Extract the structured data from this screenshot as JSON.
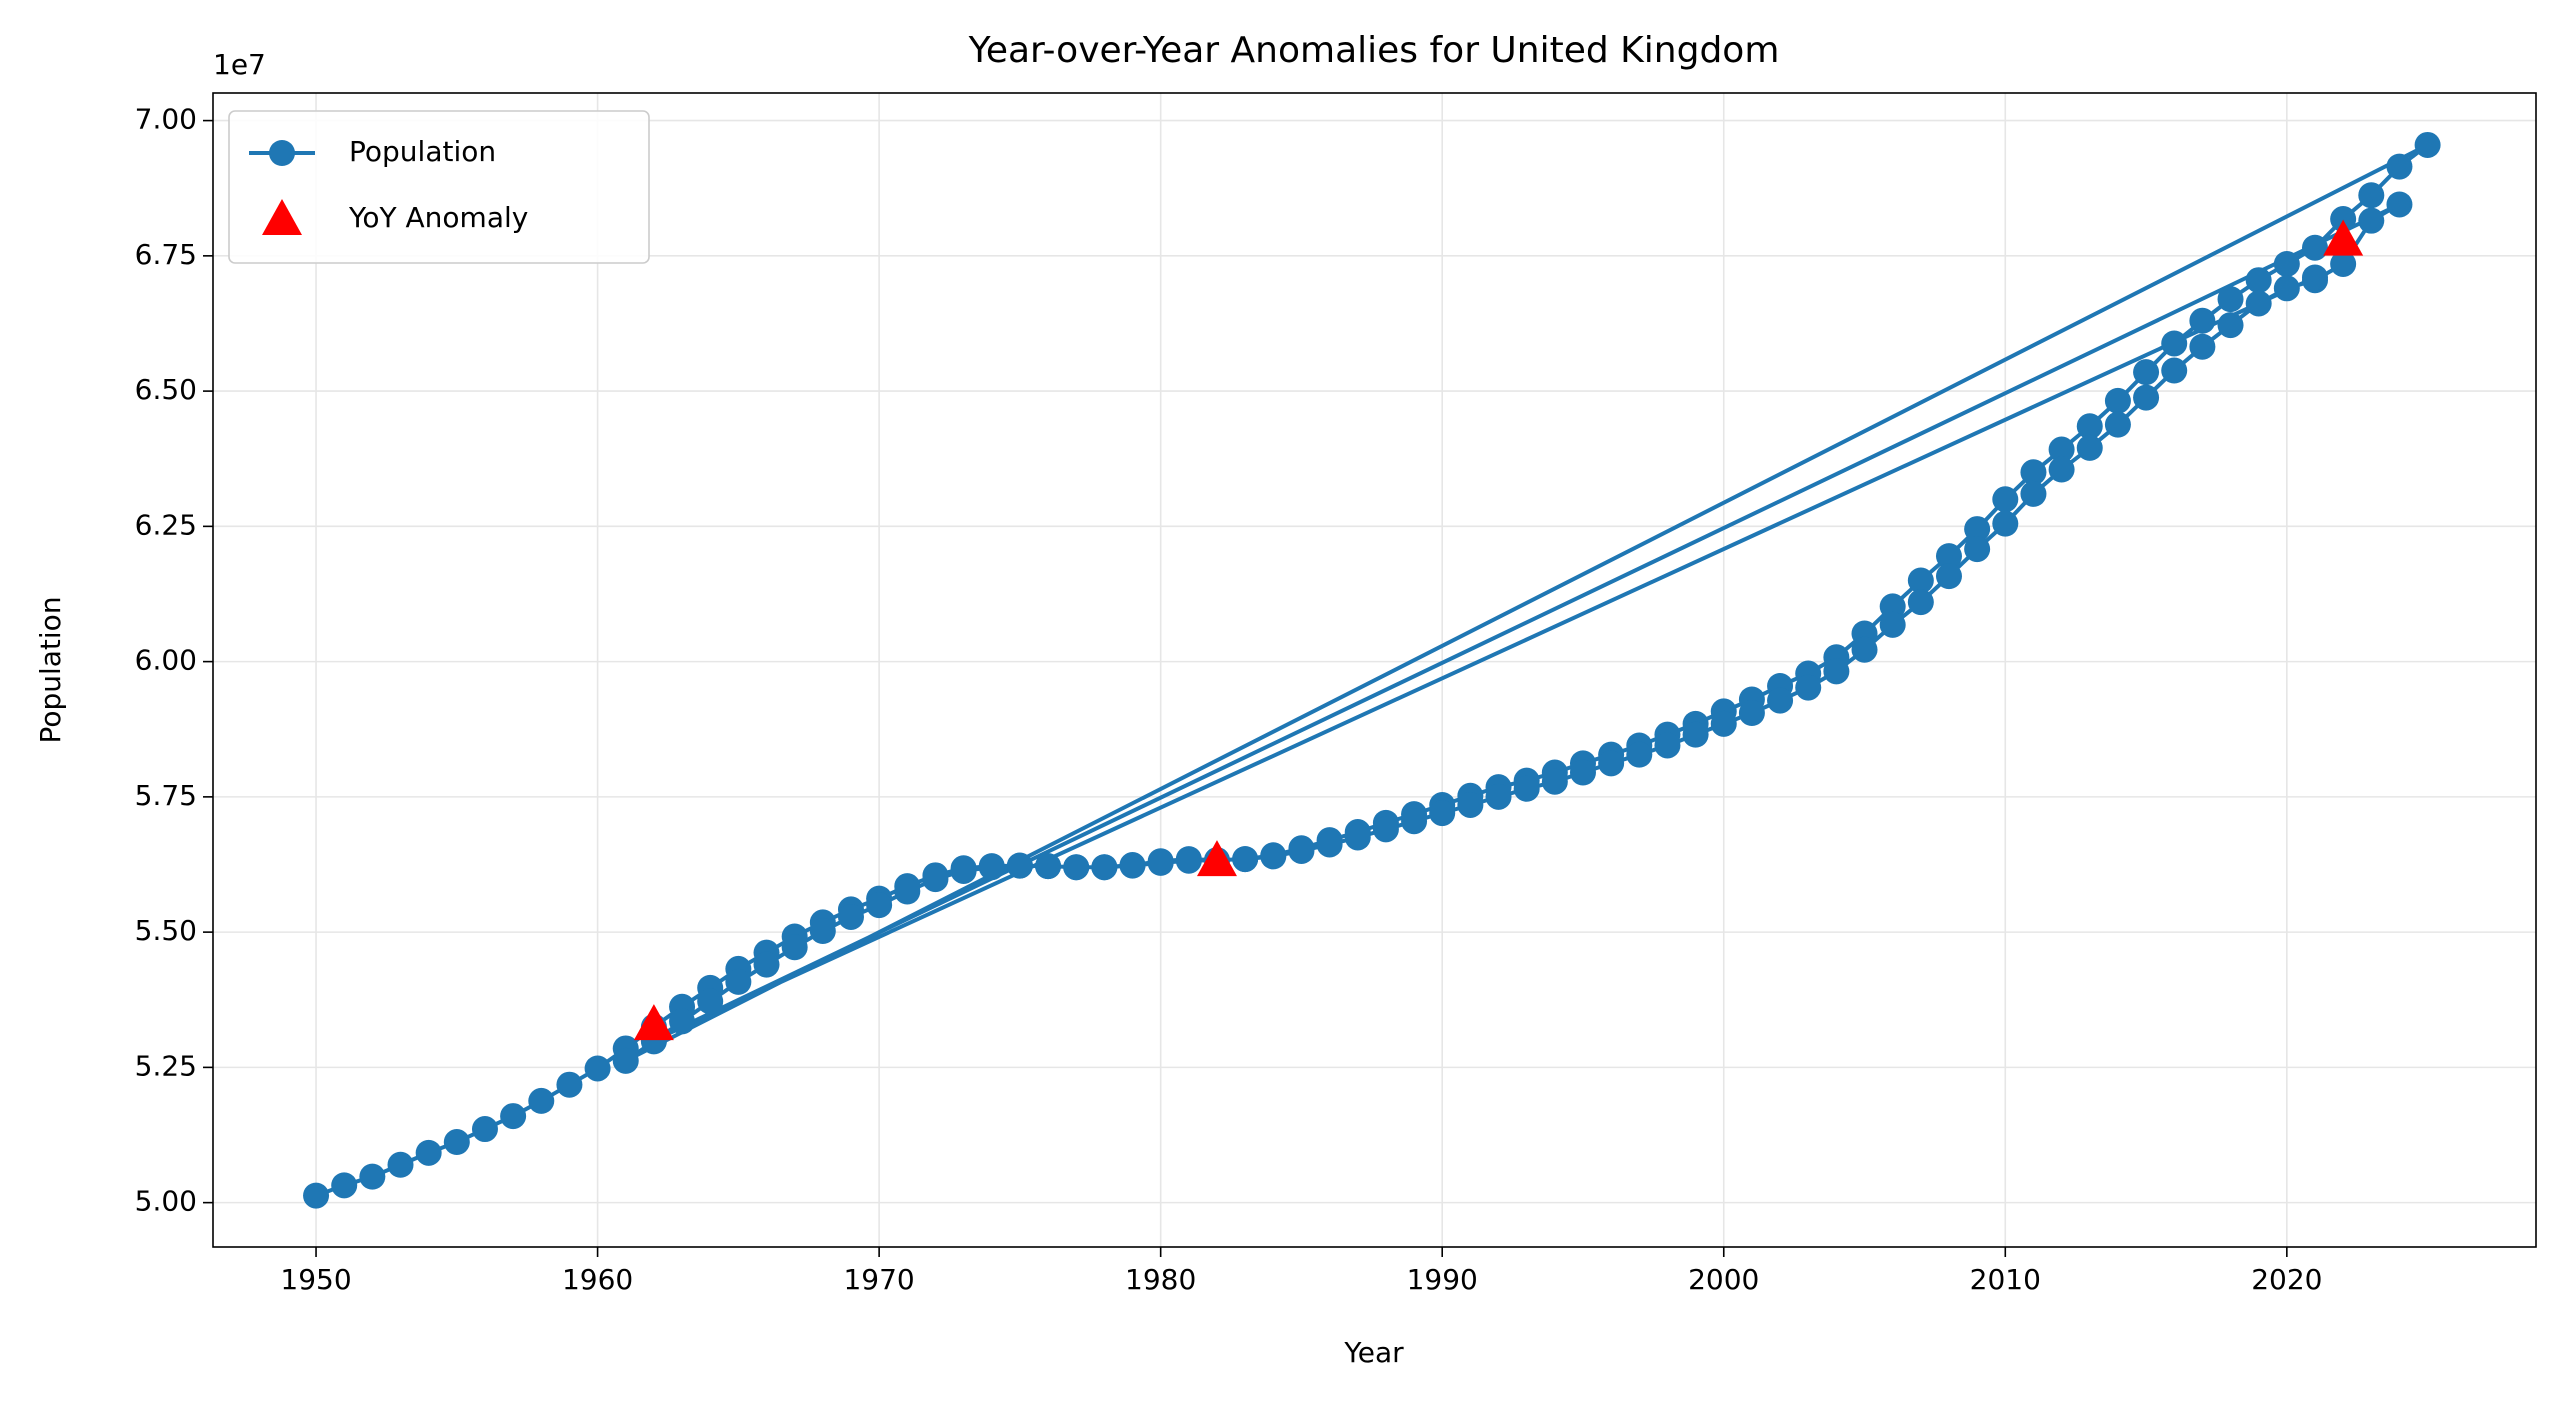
{
  "chart_data": {
    "type": "line",
    "title": "Year-over-Year Anomalies for United Kingdom",
    "xlabel": "Year",
    "ylabel": "Population",
    "y_offset_label": "1e7",
    "xlim": [
      1946.34,
      2028.85
    ],
    "ylim": [
      49180000,
      70510000
    ],
    "xticks": [
      1950,
      1960,
      1970,
      1980,
      1990,
      2000,
      2010,
      2020
    ],
    "yticks": [
      {
        "value": 50000000,
        "label": "5.00"
      },
      {
        "value": 52500000,
        "label": "5.25"
      },
      {
        "value": 55000000,
        "label": "5.50"
      },
      {
        "value": 57500000,
        "label": "5.75"
      },
      {
        "value": 60000000,
        "label": "6.00"
      },
      {
        "value": 62500000,
        "label": "6.25"
      },
      {
        "value": 65000000,
        "label": "6.50"
      },
      {
        "value": 67500000,
        "label": "6.75"
      },
      {
        "value": 70000000,
        "label": "7.00"
      }
    ],
    "grid": true,
    "legend": "upper left",
    "series": [
      {
        "name": "Population",
        "type": "line",
        "color": "#1f77b4",
        "x": [
          1950,
          1951,
          1952,
          1953,
          1954,
          1955,
          1956,
          1957,
          1958,
          1959,
          1960,
          1961,
          1962,
          1963,
          1964,
          1965,
          1966,
          1967,
          1968,
          1969,
          1970,
          1971,
          1972,
          1973,
          1974,
          1975,
          1976,
          1977,
          1978,
          1979,
          1980,
          1981,
          1982,
          1983,
          1984,
          1985,
          1986,
          1987,
          1988,
          1989,
          1990,
          1991,
          1992,
          1993,
          1994,
          1995,
          1996,
          1997,
          1998,
          1999,
          2000,
          2001,
          2002,
          2003,
          2004,
          2005,
          2006,
          2007,
          2008,
          2009,
          2010,
          2011,
          2012,
          2013,
          2014,
          2015,
          2016,
          2017,
          2018,
          2019,
          2020,
          2021,
          2022,
          2023,
          2024,
          2025,
          1961,
          1962,
          1963,
          1964,
          1965,
          1966,
          1967,
          1968,
          1969,
          1970,
          1971,
          1972,
          1973,
          1974,
          1975,
          1976,
          1977,
          1978,
          1979,
          1980,
          1981,
          1982,
          1983,
          1984,
          1985,
          1986,
          1987,
          1988,
          1989,
          1990,
          1991,
          1992,
          1993,
          1994,
          1995,
          1996,
          1997,
          1998,
          1999,
          2000,
          2001,
          2002,
          2003,
          2004,
          2005,
          2006,
          2007,
          2008,
          2009,
          2010,
          2011,
          2012,
          2013,
          2014,
          2015,
          2016,
          2017,
          2018,
          2019,
          2020,
          2021,
          2022,
          2023,
          2024,
          1962,
          2021
        ],
        "values": [
          50130000,
          50320000,
          50480000,
          50700000,
          50920000,
          51120000,
          51360000,
          51600000,
          51880000,
          52180000,
          52480000,
          52850000,
          53250000,
          53620000,
          53970000,
          54320000,
          54620000,
          54920000,
          55180000,
          55420000,
          55620000,
          55850000,
          56050000,
          56180000,
          56220000,
          56230000,
          56220000,
          56200000,
          56200000,
          56240000,
          56310000,
          56350000,
          56330000,
          56350000,
          56420000,
          56550000,
          56700000,
          56850000,
          57020000,
          57180000,
          57350000,
          57520000,
          57680000,
          57800000,
          57950000,
          58120000,
          58280000,
          58450000,
          58650000,
          58850000,
          59080000,
          59300000,
          59550000,
          59780000,
          60080000,
          60520000,
          61020000,
          61500000,
          61950000,
          62450000,
          63000000,
          63500000,
          63920000,
          64350000,
          64820000,
          65350000,
          65880000,
          66300000,
          66700000,
          67050000,
          67350000,
          67650000,
          68180000,
          68620000,
          69150000,
          69550000,
          52620000,
          52980000,
          53350000,
          53720000,
          54080000,
          54400000,
          54720000,
          55020000,
          55280000,
          55500000,
          55750000,
          55980000,
          56130000,
          56200000,
          56230000,
          56220000,
          56200000,
          56200000,
          56230000,
          56280000,
          56320000,
          56330000,
          56350000,
          56400000,
          56500000,
          56620000,
          56750000,
          56900000,
          57050000,
          57200000,
          57350000,
          57500000,
          57650000,
          57780000,
          57950000,
          58120000,
          58280000,
          58450000,
          58650000,
          58850000,
          59050000,
          59280000,
          59520000,
          59820000,
          60220000,
          60680000,
          61100000,
          61580000,
          62080000,
          62550000,
          63100000,
          63550000,
          63950000,
          64380000,
          64880000,
          65380000,
          65820000,
          66220000,
          66620000,
          66900000,
          67050000,
          67350000,
          68150000,
          68450000,
          53000000,
          67100000
        ]
      },
      {
        "name": "YoY Anomaly",
        "type": "scatter",
        "color": "#ff0000",
        "x": [
          1962,
          1982,
          2022
        ],
        "values": [
          53300000,
          56330000,
          67800000
        ]
      }
    ]
  }
}
